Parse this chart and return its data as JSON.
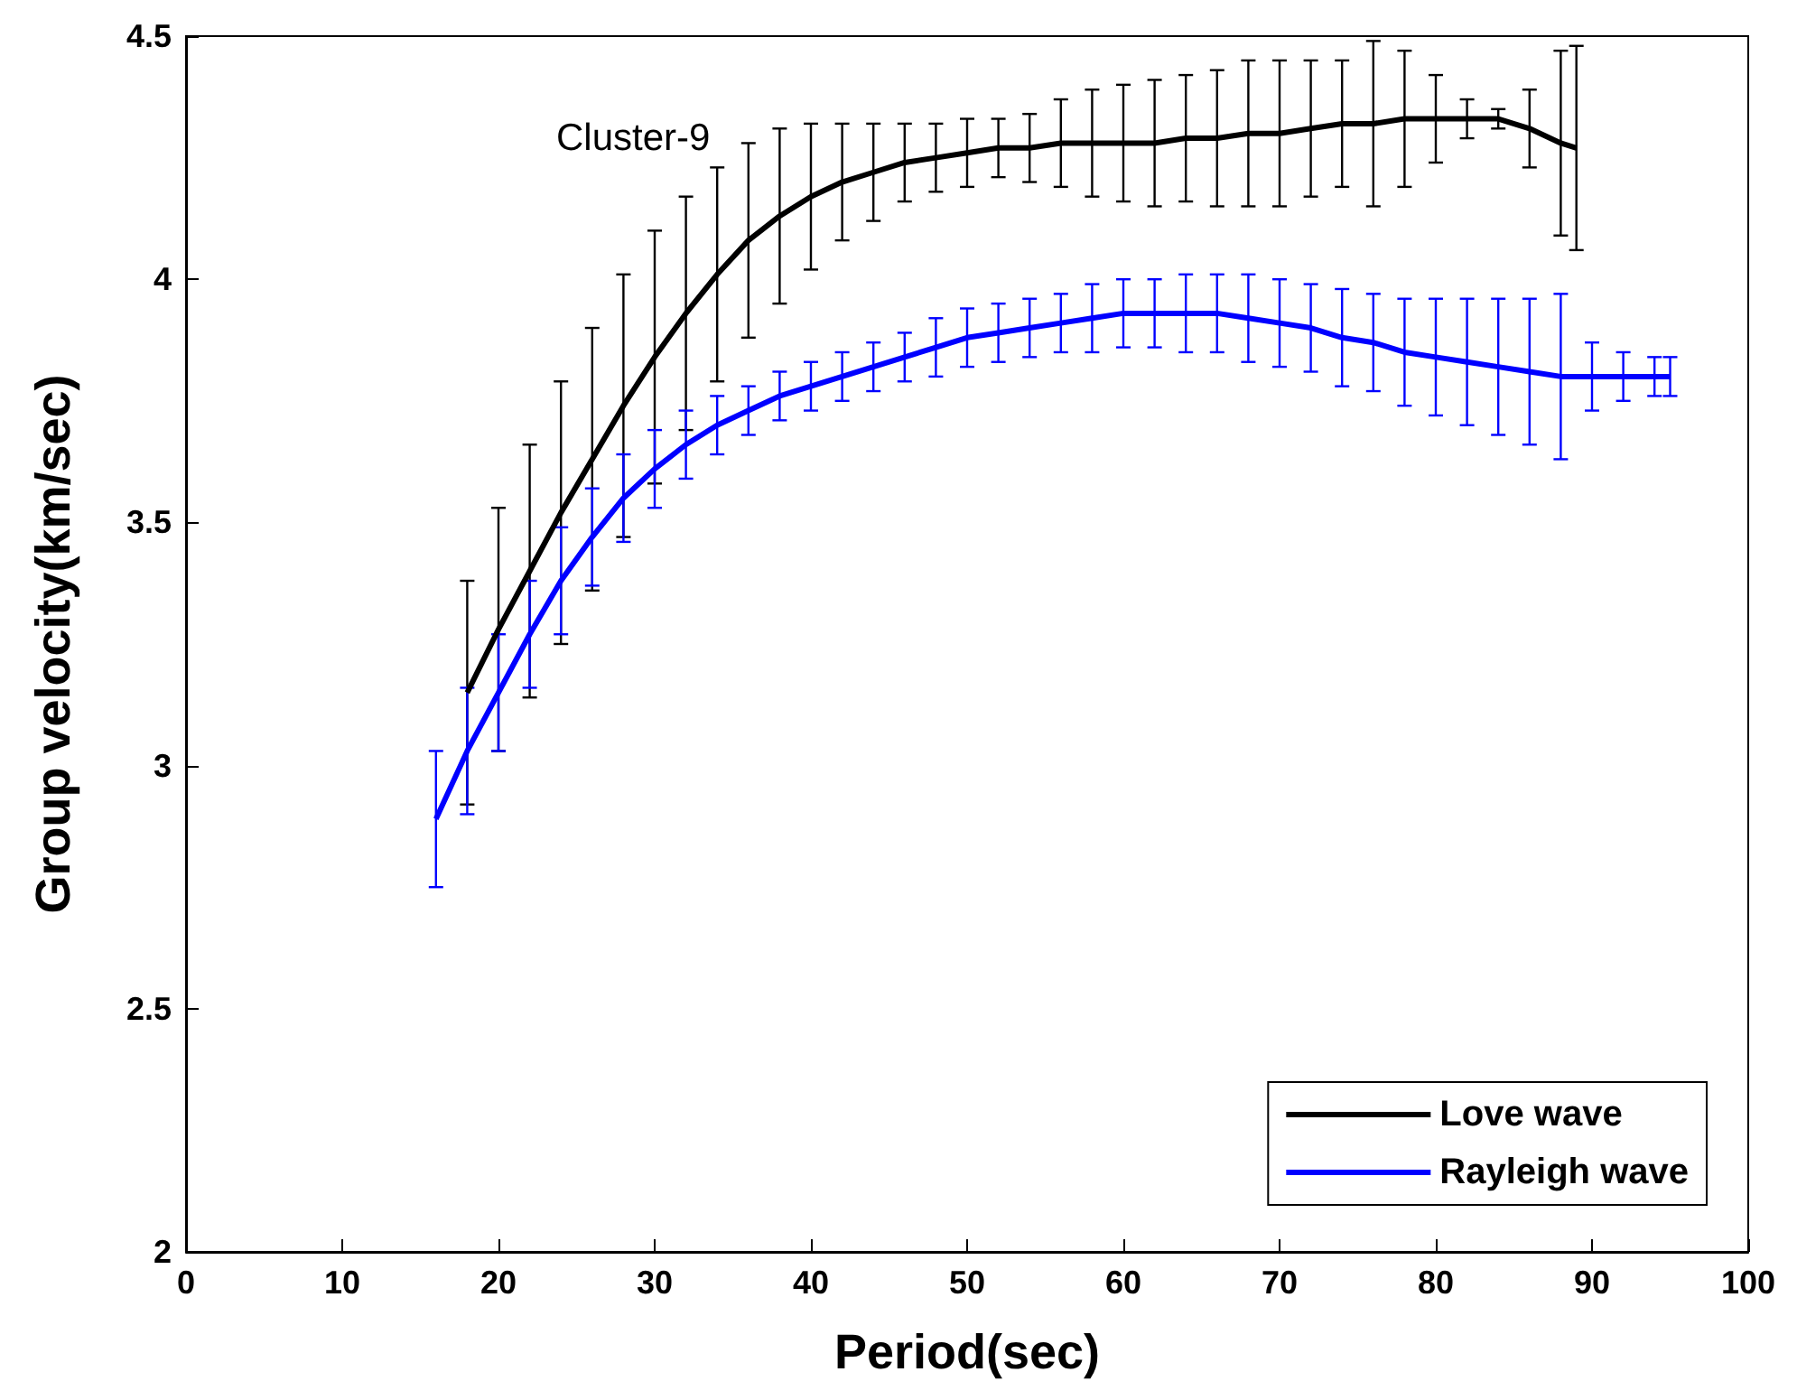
{
  "chart_data": {
    "type": "line",
    "xlabel": "Period(sec)",
    "ylabel": "Group velocity(km/sec)",
    "annotations": [
      "Cluster-9"
    ],
    "xlim": [
      0,
      100
    ],
    "xticks": [
      0,
      10,
      20,
      30,
      40,
      50,
      60,
      70,
      80,
      90,
      100
    ],
    "ylim": [
      2,
      4.5
    ],
    "yticks": [
      2,
      2.5,
      3,
      3.5,
      4,
      4.5
    ],
    "grid": false,
    "legend": "bottom right",
    "marker": "none",
    "line_style": "solid",
    "series": [
      {
        "name": "Love wave",
        "color": "#000000",
        "x": [
          18,
          20,
          22,
          24,
          26,
          28,
          30,
          32,
          34,
          36,
          38,
          40,
          42,
          44,
          46,
          48,
          50,
          52,
          54,
          56,
          58,
          60,
          62,
          64,
          66,
          68,
          70,
          72,
          74,
          76,
          78,
          80,
          82,
          84,
          86,
          88,
          89
        ],
        "values": [
          3.15,
          3.28,
          3.4,
          3.52,
          3.63,
          3.74,
          3.84,
          3.93,
          4.01,
          4.08,
          4.13,
          4.17,
          4.2,
          4.22,
          4.24,
          4.25,
          4.26,
          4.27,
          4.27,
          4.28,
          4.28,
          4.28,
          4.28,
          4.29,
          4.29,
          4.3,
          4.3,
          4.31,
          4.32,
          4.32,
          4.33,
          4.33,
          4.33,
          4.33,
          4.31,
          4.28,
          4.27
        ],
        "errors": [
          0.23,
          0.25,
          0.26,
          0.27,
          0.27,
          0.27,
          0.26,
          0.24,
          0.22,
          0.2,
          0.18,
          0.15,
          0.12,
          0.1,
          0.08,
          0.07,
          0.07,
          0.06,
          0.07,
          0.09,
          0.11,
          0.12,
          0.13,
          0.13,
          0.14,
          0.15,
          0.15,
          0.14,
          0.13,
          0.17,
          0.14,
          0.09,
          0.04,
          0.02,
          0.08,
          0.19,
          0.21
        ]
      },
      {
        "name": "Rayleigh wave",
        "color": "#0000ff",
        "x": [
          16,
          18,
          20,
          22,
          24,
          26,
          28,
          30,
          32,
          34,
          36,
          38,
          40,
          42,
          44,
          46,
          48,
          50,
          52,
          54,
          56,
          58,
          60,
          62,
          64,
          66,
          68,
          70,
          72,
          74,
          76,
          78,
          80,
          82,
          84,
          86,
          88,
          90,
          92,
          94,
          95
        ],
        "values": [
          2.89,
          3.03,
          3.15,
          3.27,
          3.38,
          3.47,
          3.55,
          3.61,
          3.66,
          3.7,
          3.73,
          3.76,
          3.78,
          3.8,
          3.82,
          3.84,
          3.86,
          3.88,
          3.89,
          3.9,
          3.91,
          3.92,
          3.93,
          3.93,
          3.93,
          3.93,
          3.92,
          3.91,
          3.9,
          3.88,
          3.87,
          3.85,
          3.84,
          3.83,
          3.82,
          3.81,
          3.8,
          3.8,
          3.8,
          3.8,
          3.8
        ],
        "errors": [
          0.14,
          0.13,
          0.12,
          0.11,
          0.11,
          0.1,
          0.09,
          0.08,
          0.07,
          0.06,
          0.05,
          0.05,
          0.05,
          0.05,
          0.05,
          0.05,
          0.06,
          0.06,
          0.06,
          0.06,
          0.06,
          0.07,
          0.07,
          0.07,
          0.08,
          0.08,
          0.09,
          0.09,
          0.09,
          0.1,
          0.1,
          0.11,
          0.12,
          0.13,
          0.14,
          0.15,
          0.17,
          0.07,
          0.05,
          0.04,
          0.04
        ]
      }
    ]
  }
}
